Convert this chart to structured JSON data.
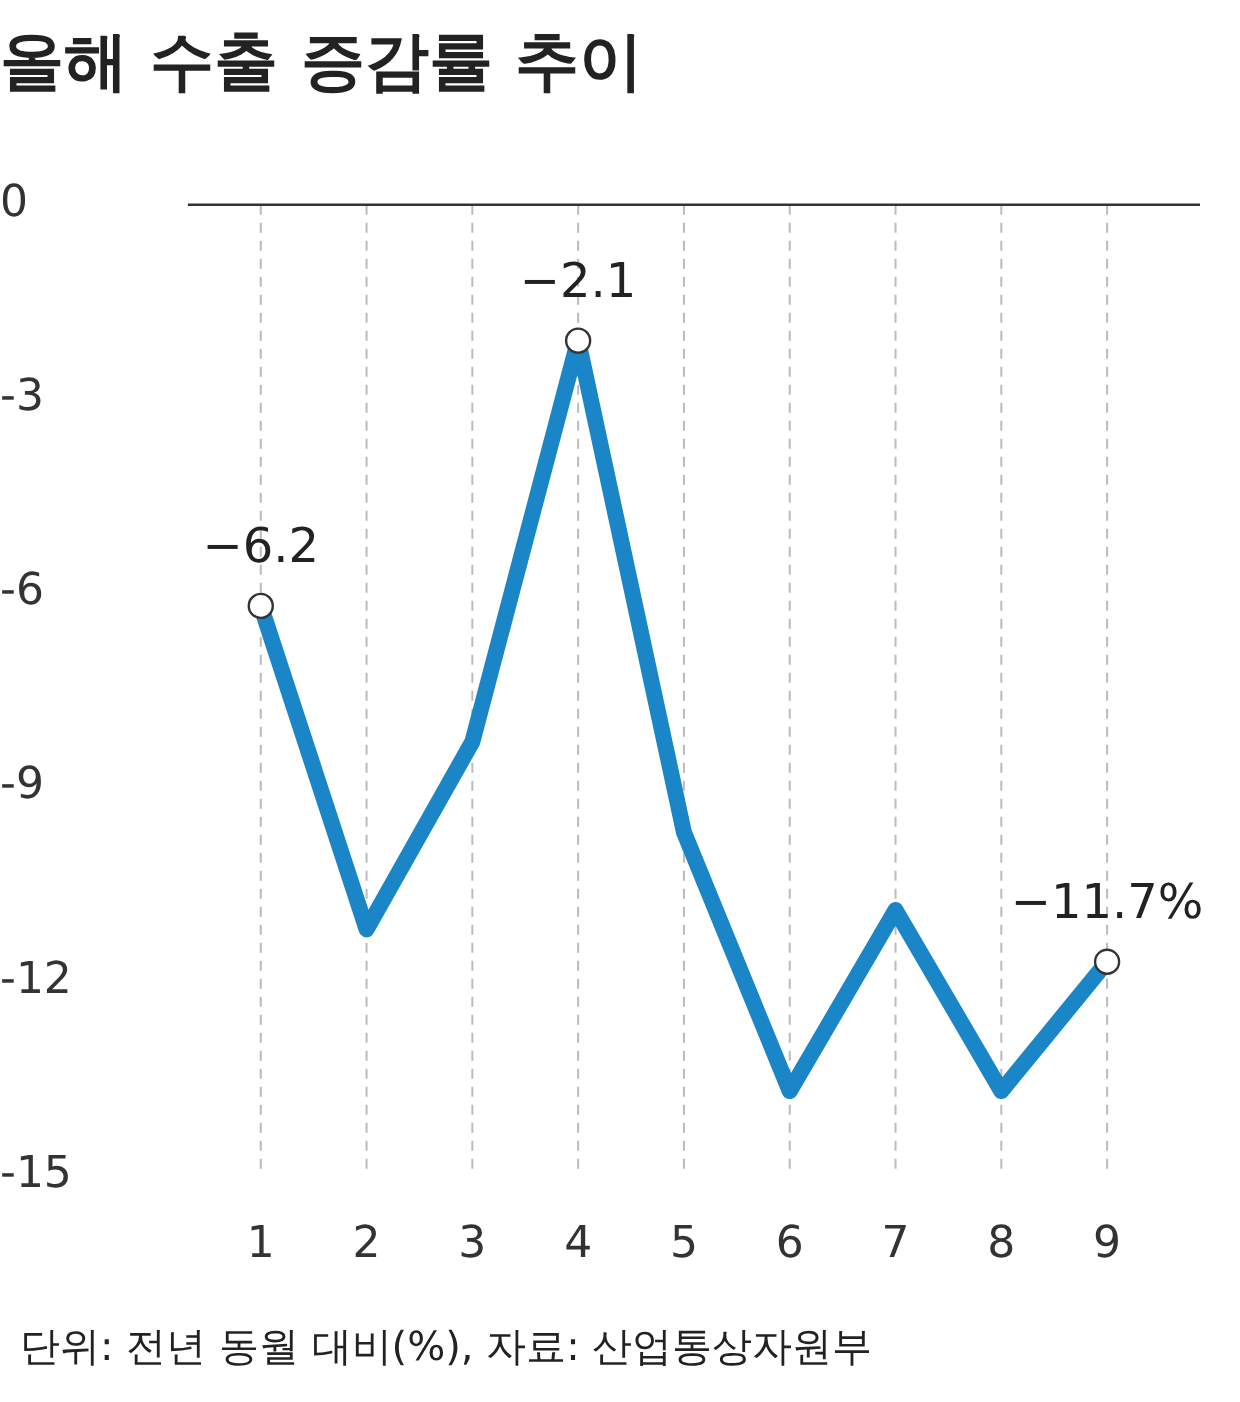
{
  "chart_data": {
    "type": "line",
    "title": "올해 수출 증감률 추이",
    "categories": [
      "1",
      "2",
      "3",
      "4",
      "5",
      "6",
      "7",
      "8",
      "9"
    ],
    "series": [
      {
        "color": "#1a86c8",
        "values": [
          -6.2,
          -11.2,
          -8.3,
          -2.1,
          -9.7,
          -13.7,
          -10.9,
          -13.7,
          -11.7
        ],
        "value_labels": [
          "−6.2",
          null,
          null,
          "−2.1",
          null,
          null,
          null,
          null,
          "−11.7%"
        ]
      }
    ],
    "ylim": [
      -15,
      0
    ],
    "yticks": [
      -15,
      -12,
      -9,
      -6,
      -3,
      0
    ],
    "grid": "x",
    "legend": false,
    "ref_lines": [
      {
        "axis": "y",
        "value": 0,
        "color": "#333333"
      }
    ],
    "annotations": [
      "단위: 전년 동월 대비(%), 자료: 산업통상자원부"
    ]
  }
}
